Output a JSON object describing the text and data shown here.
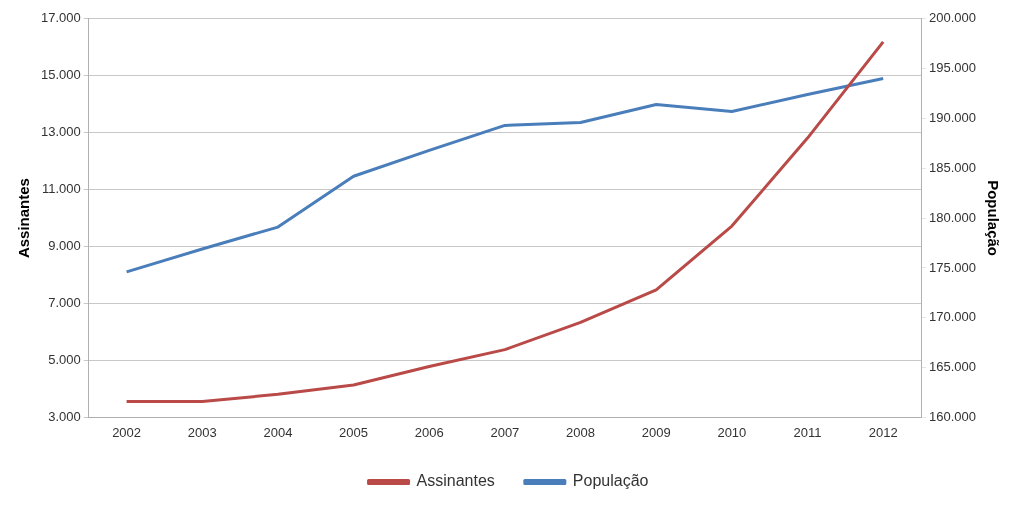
{
  "chart_data": {
    "type": "line",
    "categories": [
      "2002",
      "2003",
      "2004",
      "2005",
      "2006",
      "2007",
      "2008",
      "2009",
      "2010",
      "2011",
      "2012"
    ],
    "series": [
      {
        "name": "Assinantes",
        "color": "#b94a48",
        "values": [
          3560,
          3560,
          3810,
          4140,
          4790,
          5380,
          6340,
          7480,
          9720,
          12810,
          16190
        ]
      },
      {
        "name": "População",
        "color": "#4a7ebb",
        "axis": "y2",
        "values": [
          174600,
          176900,
          179100,
          184200,
          186800,
          189300,
          189600,
          191400,
          190700,
          192400,
          194000
        ]
      }
    ],
    "ylabel": "Assinantes",
    "y2label": "População",
    "ylim": [
      3000,
      17000
    ],
    "yticks": [
      {
        "value": 3000,
        "label": "3.000"
      },
      {
        "value": 5000,
        "label": "5.000"
      },
      {
        "value": 7000,
        "label": "7.000"
      },
      {
        "value": 9000,
        "label": "9.000"
      },
      {
        "value": 11000,
        "label": "11.000"
      },
      {
        "value": 13000,
        "label": "13.000"
      },
      {
        "value": 15000,
        "label": "15.000"
      },
      {
        "value": 17000,
        "label": "17.000"
      }
    ],
    "y2lim": [
      160000,
      200000
    ],
    "y2ticks": [
      {
        "value": 160000,
        "label": "160.000"
      },
      {
        "value": 165000,
        "label": "165.000"
      },
      {
        "value": 170000,
        "label": "170.000"
      },
      {
        "value": 175000,
        "label": "175.000"
      },
      {
        "value": 180000,
        "label": "180.000"
      },
      {
        "value": 185000,
        "label": "185.000"
      },
      {
        "value": 190000,
        "label": "190.000"
      },
      {
        "value": 195000,
        "label": "195.000"
      },
      {
        "value": 200000,
        "label": "200.000"
      }
    ],
    "grid": "y",
    "legend": "bottom",
    "marker": "none",
    "line_style": "solid"
  }
}
